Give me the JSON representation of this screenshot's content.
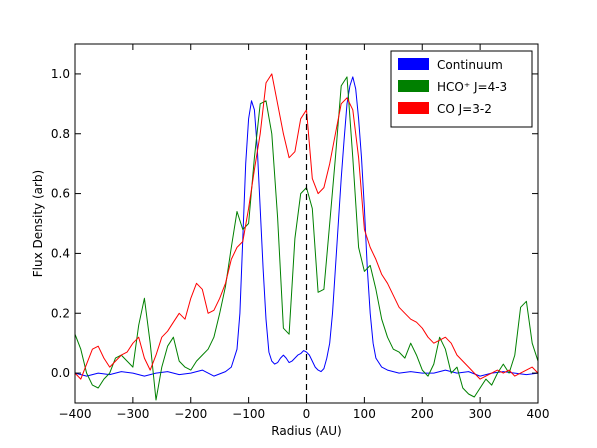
{
  "chart_data": {
    "type": "line",
    "xlabel": "Radius (AU)",
    "ylabel": "Flux Density (arb)",
    "xlim": [
      -400,
      400
    ],
    "ylim": [
      -0.1,
      1.1
    ],
    "x_ticks": [
      -400,
      -300,
      -200,
      -100,
      0,
      100,
      200,
      300,
      400
    ],
    "x_tick_labels": [
      "−400",
      "−300",
      "−200",
      "−100",
      "0",
      "100",
      "200",
      "300",
      "400"
    ],
    "y_ticks": [
      0.0,
      0.2,
      0.4,
      0.6,
      0.8,
      1.0
    ],
    "y_tick_labels": [
      "0.0",
      "0.2",
      "0.4",
      "0.6",
      "0.8",
      "1.0"
    ],
    "grid": false,
    "legend_position": "top-right",
    "vline": {
      "x": 0,
      "style": "dashed",
      "color": "#000000"
    },
    "series": [
      {
        "name": "Continuum",
        "color": "#0000ff",
        "x": [
          -400,
          -380,
          -360,
          -340,
          -320,
          -300,
          -280,
          -260,
          -240,
          -220,
          -200,
          -180,
          -160,
          -140,
          -130,
          -120,
          -115,
          -110,
          -105,
          -100,
          -95,
          -90,
          -85,
          -80,
          -75,
          -70,
          -65,
          -60,
          -55,
          -50,
          -45,
          -40,
          -35,
          -30,
          -25,
          -20,
          -15,
          -10,
          -5,
          0,
          5,
          10,
          15,
          20,
          25,
          30,
          35,
          40,
          45,
          50,
          55,
          60,
          65,
          70,
          75,
          80,
          85,
          90,
          95,
          100,
          105,
          110,
          115,
          120,
          130,
          140,
          160,
          180,
          200,
          220,
          240,
          260,
          280,
          300,
          320,
          340,
          360,
          380,
          400
        ],
        "values": [
          0.0,
          -0.01,
          0.0,
          -0.005,
          0.005,
          0.0,
          -0.01,
          0.0,
          0.005,
          -0.005,
          0.0,
          0.01,
          -0.01,
          0.005,
          0.02,
          0.08,
          0.2,
          0.45,
          0.7,
          0.85,
          0.91,
          0.88,
          0.75,
          0.55,
          0.35,
          0.18,
          0.07,
          0.04,
          0.03,
          0.035,
          0.05,
          0.06,
          0.05,
          0.035,
          0.04,
          0.05,
          0.06,
          0.065,
          0.075,
          0.07,
          0.06,
          0.04,
          0.02,
          0.01,
          0.005,
          0.015,
          0.05,
          0.1,
          0.2,
          0.35,
          0.5,
          0.65,
          0.78,
          0.9,
          0.96,
          0.99,
          0.95,
          0.85,
          0.72,
          0.55,
          0.35,
          0.2,
          0.1,
          0.05,
          0.02,
          0.01,
          0.0,
          0.005,
          0.0,
          0.0,
          0.01,
          0.0,
          0.005,
          -0.01,
          0.0,
          0.005,
          0.0,
          -0.005,
          0.0
        ]
      },
      {
        "name": "HCO⁺ J=4-3",
        "color": "#008000",
        "x": [
          -400,
          -390,
          -380,
          -370,
          -360,
          -350,
          -340,
          -330,
          -320,
          -310,
          -300,
          -290,
          -280,
          -270,
          -260,
          -250,
          -240,
          -230,
          -220,
          -210,
          -200,
          -190,
          -180,
          -170,
          -160,
          -150,
          -140,
          -130,
          -120,
          -110,
          -100,
          -90,
          -80,
          -70,
          -60,
          -50,
          -40,
          -30,
          -20,
          -10,
          0,
          10,
          20,
          30,
          40,
          50,
          60,
          70,
          80,
          90,
          100,
          110,
          120,
          130,
          140,
          150,
          160,
          170,
          180,
          190,
          200,
          210,
          220,
          230,
          240,
          250,
          260,
          270,
          280,
          290,
          300,
          310,
          320,
          330,
          340,
          350,
          360,
          370,
          380,
          390,
          400
        ],
        "values": [
          0.13,
          0.08,
          0.0,
          -0.04,
          -0.05,
          -0.02,
          0.0,
          0.05,
          0.06,
          0.04,
          0.02,
          0.16,
          0.25,
          0.1,
          -0.09,
          0.02,
          0.09,
          0.12,
          0.04,
          0.02,
          0.01,
          0.04,
          0.06,
          0.08,
          0.12,
          0.2,
          0.29,
          0.42,
          0.54,
          0.48,
          0.5,
          0.72,
          0.9,
          0.91,
          0.8,
          0.52,
          0.15,
          0.13,
          0.45,
          0.6,
          0.62,
          0.55,
          0.27,
          0.28,
          0.5,
          0.72,
          0.96,
          0.99,
          0.72,
          0.42,
          0.34,
          0.36,
          0.28,
          0.18,
          0.12,
          0.08,
          0.07,
          0.05,
          0.1,
          0.06,
          0.01,
          -0.01,
          0.03,
          0.12,
          0.08,
          0.0,
          0.02,
          -0.05,
          -0.07,
          -0.08,
          -0.05,
          -0.02,
          -0.04,
          0.0,
          0.03,
          0.0,
          0.06,
          0.22,
          0.24,
          0.1,
          0.04
        ]
      },
      {
        "name": "CO J=3-2",
        "color": "#ff0000",
        "x": [
          -400,
          -390,
          -380,
          -370,
          -360,
          -350,
          -340,
          -330,
          -320,
          -310,
          -300,
          -290,
          -280,
          -270,
          -260,
          -250,
          -240,
          -230,
          -220,
          -210,
          -200,
          -190,
          -180,
          -170,
          -160,
          -150,
          -140,
          -130,
          -120,
          -110,
          -100,
          -90,
          -80,
          -70,
          -60,
          -50,
          -40,
          -30,
          -20,
          -10,
          0,
          10,
          20,
          30,
          40,
          50,
          60,
          70,
          80,
          90,
          100,
          110,
          120,
          130,
          140,
          150,
          160,
          170,
          180,
          190,
          200,
          210,
          220,
          230,
          240,
          250,
          260,
          270,
          280,
          290,
          300,
          310,
          320,
          330,
          340,
          350,
          360,
          370,
          380,
          390,
          400
        ],
        "values": [
          0.0,
          -0.02,
          0.03,
          0.08,
          0.09,
          0.05,
          0.02,
          0.04,
          0.06,
          0.07,
          0.1,
          0.12,
          0.05,
          0.01,
          0.06,
          0.12,
          0.14,
          0.17,
          0.2,
          0.18,
          0.25,
          0.3,
          0.28,
          0.2,
          0.21,
          0.25,
          0.3,
          0.38,
          0.42,
          0.44,
          0.55,
          0.68,
          0.8,
          0.97,
          1.0,
          0.9,
          0.8,
          0.72,
          0.74,
          0.85,
          0.88,
          0.65,
          0.6,
          0.62,
          0.7,
          0.8,
          0.9,
          0.92,
          0.88,
          0.72,
          0.48,
          0.42,
          0.38,
          0.33,
          0.3,
          0.26,
          0.22,
          0.2,
          0.18,
          0.17,
          0.15,
          0.12,
          0.1,
          0.11,
          0.12,
          0.1,
          0.06,
          0.04,
          0.02,
          0.0,
          -0.02,
          -0.01,
          0.0,
          0.01,
          0.0,
          0.01,
          -0.01,
          0.0,
          0.01,
          0.02,
          0.0
        ]
      }
    ]
  }
}
